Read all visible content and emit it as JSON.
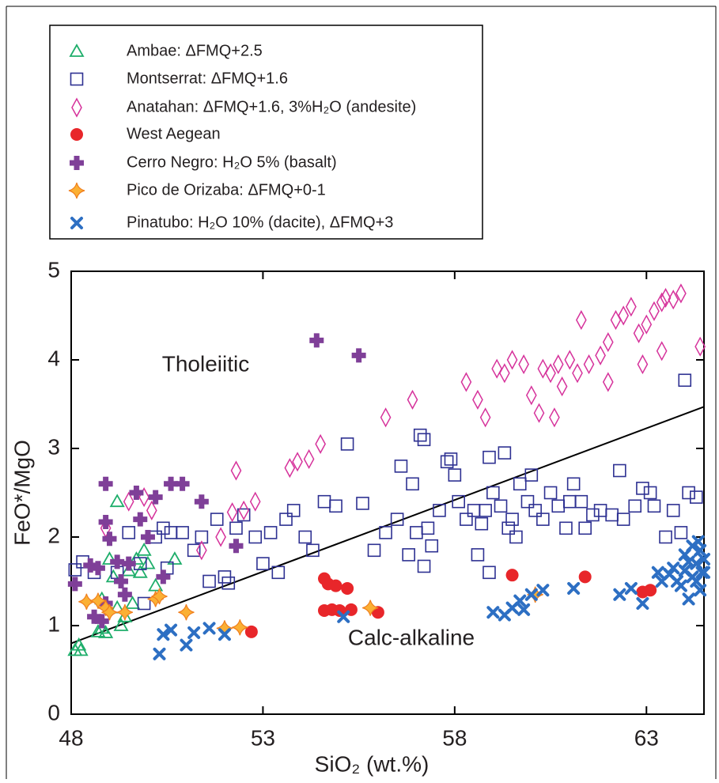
{
  "chart_data": {
    "type": "scatter",
    "xlabel": "SiO₂ (wt.%)",
    "ylabel": "FeO*/MgO",
    "xlim": [
      48,
      64.5
    ],
    "xticks": [
      48,
      53,
      58,
      63
    ],
    "ylim": [
      0,
      5
    ],
    "yticks": [
      0,
      1,
      2,
      3,
      4,
      5
    ],
    "annotations": [
      "Tholeiitic",
      "Calc-alkaline"
    ],
    "reference_line": {
      "x": [
        48,
        64.5
      ],
      "values": [
        0.8,
        3.47
      ],
      "color": "#000000"
    },
    "series": [
      {
        "name": "Ambae: ΔFMQ+2.5",
        "color": "#1fae6b",
        "marker": "triangle",
        "x": [
          48.1,
          48.2,
          48.25,
          48.7,
          48.8,
          48.9,
          48.8,
          49.0,
          49.1,
          49.2,
          49.3,
          49.4,
          49.5,
          49.6,
          49.7,
          49.8,
          49.9,
          50.0,
          50.2,
          50.7,
          49.2
        ],
        "values": [
          0.72,
          0.78,
          0.72,
          0.93,
          0.97,
          0.92,
          1.3,
          1.75,
          1.55,
          1.2,
          1.0,
          1.1,
          1.62,
          1.25,
          1.75,
          1.6,
          1.85,
          1.7,
          1.45,
          1.75,
          2.4
        ]
      },
      {
        "name": "Montserrat: ΔFMQ+1.6",
        "color": "#2e3192",
        "marker": "square",
        "x": [
          48.1,
          48.3,
          48.6,
          49.2,
          49.5,
          49.8,
          49.9,
          50.2,
          50.4,
          50.6,
          50.5,
          50.9,
          51.2,
          51.4,
          51.6,
          51.8,
          52.0,
          52.1,
          52.3,
          52.5,
          52.8,
          53.0,
          53.2,
          53.4,
          53.6,
          53.8,
          54.1,
          54.3,
          54.6,
          54.9,
          55.2,
          55.6,
          55.9,
          56.2,
          56.5,
          56.8,
          56.9,
          57.0,
          57.1,
          57.2,
          57.3,
          57.4,
          57.6,
          57.8,
          58.0,
          58.1,
          58.3,
          58.5,
          58.7,
          58.8,
          58.9,
          59.0,
          59.2,
          59.4,
          59.5,
          59.7,
          59.9,
          60.1,
          60.3,
          60.5,
          60.7,
          60.9,
          61.1,
          61.3,
          61.6,
          61.8,
          62.1,
          62.4,
          62.7,
          62.9,
          63.2,
          63.5,
          63.7,
          63.9,
          64.1,
          64.3,
          64.0,
          59.3,
          58.9,
          57.9,
          56.6,
          62.3,
          61.0,
          58.6,
          57.2,
          61.4,
          63.1,
          60.0,
          59.6
        ],
        "values": [
          1.63,
          1.72,
          1.6,
          1.6,
          2.05,
          1.7,
          1.25,
          2.0,
          2.1,
          2.05,
          1.65,
          2.05,
          1.85,
          2.0,
          1.5,
          2.2,
          1.55,
          1.48,
          2.1,
          2.25,
          2.0,
          1.7,
          2.05,
          1.6,
          2.2,
          2.3,
          2.0,
          1.85,
          2.4,
          2.35,
          3.05,
          2.38,
          1.85,
          2.05,
          2.2,
          1.8,
          2.6,
          2.05,
          3.15,
          3.1,
          2.1,
          1.9,
          2.3,
          2.85,
          2.7,
          2.4,
          2.2,
          2.3,
          2.15,
          2.3,
          1.6,
          2.5,
          2.35,
          2.1,
          2.2,
          2.6,
          2.4,
          2.3,
          2.2,
          2.5,
          2.35,
          2.1,
          2.6,
          2.4,
          2.25,
          2.3,
          2.25,
          2.2,
          2.35,
          2.55,
          2.35,
          2.0,
          2.3,
          2.05,
          2.5,
          2.45,
          3.77,
          2.95,
          2.9,
          2.88,
          2.8,
          2.75,
          2.4,
          1.8,
          1.67,
          2.1,
          2.5,
          2.7,
          2.0
        ]
      },
      {
        "name": "Anatahan: ΔFMQ+1.6, 3%H₂O (andesite)",
        "color": "#d6329b",
        "marker": "diamond",
        "x": [
          48.9,
          49.5,
          49.9,
          50.1,
          51.4,
          51.9,
          52.2,
          52.5,
          52.3,
          53.7,
          53.9,
          54.2,
          54.5,
          52.8,
          56.2,
          56.9,
          58.3,
          58.6,
          58.8,
          59.1,
          59.3,
          59.8,
          60.0,
          60.3,
          60.5,
          60.7,
          60.8,
          61.0,
          61.2,
          61.3,
          61.5,
          61.8,
          62.0,
          62.2,
          62.4,
          62.6,
          62.8,
          63.0,
          63.2,
          63.4,
          63.5,
          63.7,
          63.9,
          62.0,
          62.9,
          63.4,
          64.4,
          60.6,
          60.2,
          59.5
        ],
        "values": [
          2.1,
          2.4,
          2.45,
          2.3,
          1.85,
          2.0,
          2.28,
          2.3,
          2.75,
          2.78,
          2.85,
          2.88,
          3.05,
          2.4,
          3.35,
          3.55,
          3.75,
          3.55,
          3.35,
          3.9,
          3.85,
          3.95,
          3.6,
          3.9,
          3.85,
          3.95,
          3.7,
          4.0,
          3.85,
          4.45,
          3.95,
          4.05,
          4.2,
          4.45,
          4.5,
          4.6,
          4.3,
          4.4,
          4.55,
          4.65,
          4.7,
          4.68,
          4.75,
          3.75,
          3.95,
          4.1,
          4.15,
          3.35,
          3.4,
          4.0
        ]
      },
      {
        "name": "West Aegean",
        "color": "#e8262a",
        "marker": "circle",
        "x": [
          52.7,
          54.6,
          54.7,
          54.9,
          55.2,
          54.6,
          54.8,
          55.0,
          55.3,
          56.0,
          59.5,
          61.4,
          62.9,
          63.1
        ],
        "values": [
          0.93,
          1.53,
          1.47,
          1.45,
          1.42,
          1.17,
          1.18,
          1.17,
          1.18,
          1.15,
          1.57,
          1.55,
          1.38,
          1.4
        ]
      },
      {
        "name": "Cerro Negro: H₂O 5% (basalt)",
        "color": "#7f3f98",
        "marker": "plus",
        "x": [
          48.1,
          48.5,
          48.7,
          48.9,
          48.9,
          49.0,
          49.2,
          48.6,
          48.8,
          49.4,
          49.5,
          49.7,
          49.8,
          50.0,
          50.2,
          50.4,
          50.6,
          50.9,
          51.4,
          52.3,
          54.4,
          55.5,
          49.3,
          48.9
        ],
        "values": [
          1.47,
          1.68,
          1.65,
          2.6,
          2.17,
          1.98,
          1.72,
          1.1,
          1.05,
          1.35,
          1.7,
          2.5,
          2.2,
          2.0,
          2.45,
          1.55,
          2.6,
          2.6,
          2.4,
          1.9,
          4.22,
          4.05,
          1.5,
          1.25
        ]
      },
      {
        "name": "Pico de Orizaba: ΔFMQ+0-1",
        "color": "#fbb034",
        "marker": "star",
        "x": [
          48.4,
          48.7,
          48.9,
          49.0,
          49.4,
          50.2,
          50.3,
          51.0,
          52.0,
          52.4,
          55.8,
          60.1
        ],
        "values": [
          1.27,
          1.28,
          1.2,
          1.15,
          1.15,
          1.3,
          1.33,
          1.15,
          0.97,
          0.98,
          1.2,
          1.35
        ]
      },
      {
        "name": "Pinatubo: H₂O 10% (dacite), ΔFMQ+3",
        "color": "#2d6fc3",
        "marker": "x",
        "x": [
          50.3,
          50.4,
          50.6,
          51.0,
          51.2,
          51.6,
          52.0,
          55.1,
          59.0,
          59.3,
          59.5,
          59.7,
          59.8,
          60.0,
          60.3,
          61.1,
          62.3,
          62.6,
          62.9,
          63.3,
          63.6,
          63.8,
          63.9,
          64.0,
          64.1,
          64.2,
          64.3,
          64.35,
          64.4,
          64.45,
          64.5,
          64.2,
          64.0,
          63.7,
          64.3,
          64.5,
          63.4,
          64.1,
          64.4
        ],
        "values": [
          0.68,
          0.9,
          0.95,
          0.78,
          0.92,
          0.97,
          0.9,
          1.1,
          1.15,
          1.12,
          1.2,
          1.28,
          1.18,
          1.35,
          1.4,
          1.42,
          1.35,
          1.42,
          1.25,
          1.6,
          1.58,
          1.5,
          1.45,
          1.62,
          1.3,
          1.55,
          1.7,
          1.95,
          1.85,
          1.6,
          1.75,
          1.9,
          1.8,
          1.65,
          1.5,
          1.6,
          1.5,
          1.72,
          1.4
        ]
      }
    ]
  }
}
